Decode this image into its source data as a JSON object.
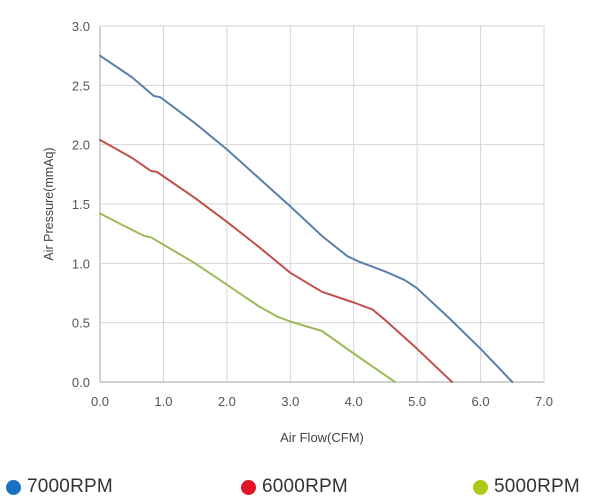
{
  "chart_data": {
    "type": "line",
    "title": "",
    "xlabel": "Air Flow(CFM)",
    "ylabel": "Air Pressure(mmAq)",
    "xlim": [
      0,
      7
    ],
    "ylim": [
      0,
      3
    ],
    "xticks": [
      "0.0",
      "1.0",
      "2.0",
      "3.0",
      "4.0",
      "5.0",
      "6.0",
      "7.0"
    ],
    "yticks": [
      "0.0",
      "0.5",
      "1.0",
      "1.5",
      "2.0",
      "2.5",
      "3.0"
    ],
    "grid": true,
    "legend_position": "bottom",
    "series": [
      {
        "name": "7000RPM",
        "line_color": "#5b7fab",
        "legend_color": "#1a73c2",
        "points": [
          [
            0,
            2.75
          ],
          [
            0.5,
            2.57
          ],
          [
            0.85,
            2.41
          ],
          [
            0.95,
            2.4
          ],
          [
            1.5,
            2.18
          ],
          [
            2.0,
            1.96
          ],
          [
            2.5,
            1.72
          ],
          [
            3.0,
            1.48
          ],
          [
            3.5,
            1.23
          ],
          [
            3.9,
            1.06
          ],
          [
            4.1,
            1.01
          ],
          [
            4.5,
            0.93
          ],
          [
            4.8,
            0.86
          ],
          [
            5.0,
            0.79
          ],
          [
            5.5,
            0.54
          ],
          [
            6.0,
            0.28
          ],
          [
            6.5,
            0.0
          ]
        ]
      },
      {
        "name": "6000RPM",
        "line_color": "#c0504d",
        "legend_color": "#e3142a",
        "points": [
          [
            0,
            2.04
          ],
          [
            0.5,
            1.89
          ],
          [
            0.8,
            1.78
          ],
          [
            0.9,
            1.77
          ],
          [
            1.5,
            1.55
          ],
          [
            2.0,
            1.35
          ],
          [
            2.5,
            1.14
          ],
          [
            3.0,
            0.92
          ],
          [
            3.5,
            0.76
          ],
          [
            4.0,
            0.67
          ],
          [
            4.3,
            0.61
          ],
          [
            4.5,
            0.52
          ],
          [
            5.0,
            0.28
          ],
          [
            5.55,
            0.0
          ]
        ]
      },
      {
        "name": "5000RPM",
        "line_color": "#9bbb59",
        "legend_color": "#a9cc1c",
        "points": [
          [
            0,
            1.42
          ],
          [
            0.4,
            1.31
          ],
          [
            0.7,
            1.23
          ],
          [
            0.8,
            1.22
          ],
          [
            1.5,
            1.0
          ],
          [
            2.0,
            0.82
          ],
          [
            2.5,
            0.64
          ],
          [
            2.8,
            0.55
          ],
          [
            3.0,
            0.51
          ],
          [
            3.5,
            0.43
          ],
          [
            4.0,
            0.24
          ],
          [
            4.65,
            0.0
          ]
        ]
      }
    ]
  }
}
